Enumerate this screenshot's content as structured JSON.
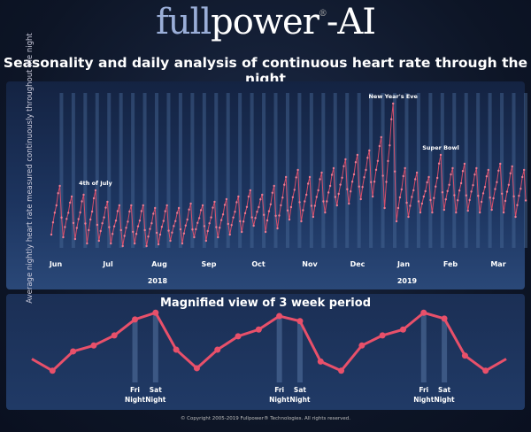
{
  "header": {
    "logo_part1": "full",
    "logo_part2": "power",
    "logo_reg": "®",
    "logo_part3": "-AI",
    "subtitle": "Seasonality and daily analysis of continuous heart rate through the night"
  },
  "chart_data": [
    {
      "type": "line",
      "title": "",
      "ylabel": "Average nightly heart rate measured continuously throughout the night",
      "y_units": "relative",
      "x_tick_labels": [
        "Jun",
        "Jul",
        "Aug",
        "Sep",
        "Oct",
        "Nov",
        "Dec",
        "Jan",
        "Feb",
        "Mar"
      ],
      "x_group_labels": [
        "2018",
        "2019"
      ],
      "weekly_peaks": [
        90,
        78,
        80,
        85,
        72,
        68,
        68,
        68,
        65,
        68,
        65,
        70,
        68,
        72,
        75,
        78,
        85,
        80,
        90,
        100,
        108,
        100,
        105,
        110,
        120,
        125,
        130,
        145,
        183,
        110,
        105,
        100,
        125,
        110,
        115,
        110,
        108,
        115,
        112,
        108
      ],
      "weekly_troughs": [
        35,
        32,
        30,
        25,
        28,
        25,
        22,
        25,
        22,
        24,
        28,
        25,
        32,
        28,
        32,
        35,
        38,
        45,
        38,
        42,
        52,
        50,
        55,
        60,
        68,
        70,
        75,
        78,
        65,
        50,
        55,
        60,
        60,
        63,
        60,
        62,
        60,
        63,
        60,
        55
      ],
      "annotations": [
        {
          "label": "4th of July",
          "week": 3
        },
        {
          "label": "New Year's Eve",
          "week": 28
        },
        {
          "label": "Super Bowl",
          "week": 32
        }
      ]
    },
    {
      "type": "line",
      "title": "Magnified view of 3 week period",
      "values": [
        30,
        16,
        39,
        46,
        58,
        77,
        85,
        41,
        19,
        41,
        57,
        65,
        81,
        75,
        27,
        16,
        46,
        58,
        65,
        85,
        78,
        34,
        16,
        30
      ],
      "markers": [
        {
          "index": 5,
          "label": "Fri Night"
        },
        {
          "index": 6,
          "label": "Sat Night"
        },
        {
          "index": 12,
          "label": "Fri Night"
        },
        {
          "index": 13,
          "label": "Sat Night"
        },
        {
          "index": 19,
          "label": "Fri Night"
        },
        {
          "index": 20,
          "label": "Sat Night"
        }
      ]
    }
  ],
  "marker_words": {
    "fri": "Fri",
    "sat": "Sat",
    "night": "Night"
  },
  "footer": {
    "copyright": "© Copyright 2005-2019 Fullpower® Technologies. All rights reserved."
  },
  "colors": {
    "line": "#e8506a",
    "bars": "#4a6a9a"
  }
}
